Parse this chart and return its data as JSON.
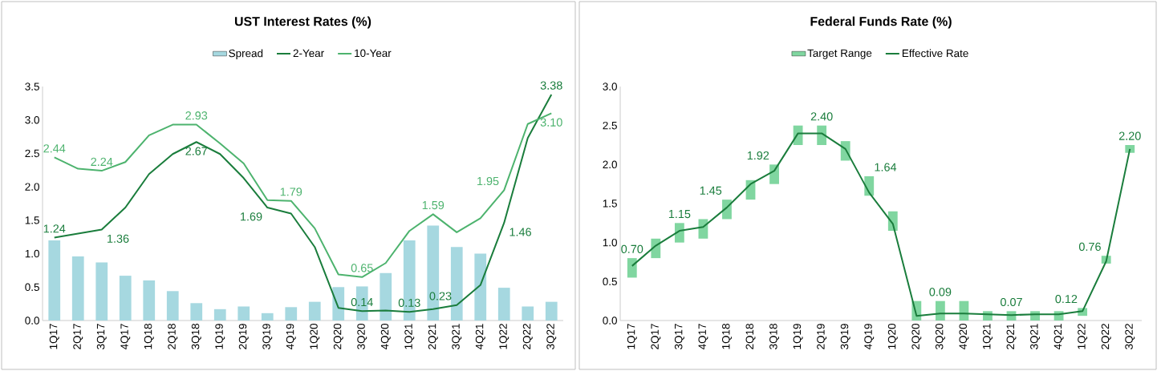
{
  "chart_data": [
    {
      "type": "bar",
      "title": "UST Interest Rates (%)",
      "legend": "top",
      "grid": false,
      "categories": [
        "1Q17",
        "2Q17",
        "3Q17",
        "4Q17",
        "1Q18",
        "2Q18",
        "3Q18",
        "1Q19",
        "2Q19",
        "3Q19",
        "4Q19",
        "1Q20",
        "2Q20",
        "3Q20",
        "4Q20",
        "1Q21",
        "2Q21",
        "3Q21",
        "4Q21",
        "1Q22",
        "2Q22",
        "3Q22"
      ],
      "ylim": [
        0,
        3.5
      ],
      "yticks": [
        {
          "value": 0,
          "label": "0.0"
        },
        0.5,
        {
          "value": 1,
          "label": "1.0"
        },
        1.5,
        {
          "value": 2,
          "label": "2.0"
        },
        2.5,
        {
          "value": 3,
          "label": "3.0"
        },
        3.5
      ],
      "series": [
        {
          "name": "Spread",
          "color": "#a6d8e0",
          "values": [
            1.2,
            0.96,
            0.87,
            0.67,
            0.6,
            0.44,
            0.26,
            0.17,
            0.21,
            0.11,
            0.2,
            0.28,
            0.5,
            0.51,
            0.71,
            1.2,
            1.42,
            1.1,
            1.0,
            0.49,
            0.21,
            0.28
          ]
        },
        {
          "name": "2-Year",
          "type": "line",
          "color": "#1a7d3c",
          "values": [
            1.24,
            1.3,
            1.36,
            1.69,
            2.19,
            2.49,
            2.67,
            2.49,
            2.13,
            1.69,
            1.6,
            1.1,
            0.19,
            0.14,
            0.15,
            0.13,
            0.17,
            0.23,
            0.53,
            1.46,
            2.73,
            3.38
          ],
          "value_labels": [
            "1.24",
            null,
            "1.36",
            null,
            null,
            null,
            "2.67",
            null,
            null,
            "1.69",
            null,
            null,
            null,
            "0.14",
            null,
            "0.13",
            null,
            "0.23",
            null,
            "1.46",
            null,
            "3.38"
          ]
        },
        {
          "name": "10-Year",
          "type": "line",
          "color": "#4db36e",
          "values": [
            2.44,
            2.27,
            2.24,
            2.37,
            2.77,
            2.93,
            2.93,
            2.65,
            2.35,
            1.8,
            1.79,
            1.38,
            0.69,
            0.65,
            0.86,
            1.34,
            1.59,
            1.32,
            1.53,
            1.95,
            2.94,
            3.1
          ],
          "value_labels": [
            "2.44",
            null,
            "2.24",
            null,
            null,
            null,
            "2.93",
            null,
            null,
            null,
            "1.79",
            null,
            null,
            "0.65",
            null,
            null,
            "1.59",
            null,
            null,
            "1.95",
            null,
            "3.10"
          ]
        }
      ]
    },
    {
      "type": "bar",
      "title": "Federal Funds Rate (%)",
      "legend": "top",
      "grid": false,
      "categories": [
        "1Q17",
        "2Q17",
        "3Q17",
        "4Q17",
        "1Q18",
        "2Q18",
        "3Q18",
        "1Q19",
        "2Q19",
        "3Q19",
        "4Q19",
        "1Q20",
        "2Q20",
        "3Q20",
        "4Q20",
        "1Q21",
        "2Q21",
        "3Q21",
        "4Q21",
        "1Q22",
        "2Q22",
        "3Q22"
      ],
      "ylim": [
        0,
        3
      ],
      "yticks": [
        {
          "value": 0,
          "label": "0.0"
        },
        0.5,
        {
          "value": 1,
          "label": "1.0"
        },
        1.5,
        {
          "value": 2,
          "label": "2.0"
        },
        2.5,
        {
          "value": 3,
          "label": "3.0"
        }
      ],
      "series": [
        {
          "name": "Target Range",
          "color": "#80d6a0",
          "base": [
            0.55,
            0.8,
            1.0,
            1.05,
            1.3,
            1.55,
            1.75,
            2.25,
            2.25,
            2.05,
            1.6,
            1.15,
            0,
            0,
            0,
            0,
            0,
            0,
            0,
            0.06,
            0.73,
            2.15
          ],
          "values": [
            0.25,
            0.25,
            0.25,
            0.25,
            0.25,
            0.25,
            0.25,
            0.25,
            0.25,
            0.25,
            0.25,
            0.25,
            0.25,
            0.25,
            0.25,
            0.12,
            0.12,
            0.12,
            0.12,
            0.1,
            0.1,
            0.1
          ]
        },
        {
          "name": "Effective Rate",
          "type": "line",
          "color": "#1a7d3c",
          "values": [
            0.7,
            0.96,
            1.15,
            1.2,
            1.45,
            1.75,
            1.92,
            2.4,
            2.4,
            2.2,
            1.64,
            1.24,
            0.06,
            0.09,
            0.09,
            0.08,
            0.07,
            0.08,
            0.08,
            0.12,
            0.76,
            2.2
          ],
          "value_labels": [
            "0.70",
            null,
            "1.15",
            null,
            "1.45",
            null,
            "1.92",
            null,
            "2.40",
            null,
            "1.64",
            null,
            null,
            "0.09",
            null,
            null,
            "0.07",
            null,
            null,
            "0.12",
            "0.76",
            "2.20"
          ]
        }
      ]
    }
  ]
}
